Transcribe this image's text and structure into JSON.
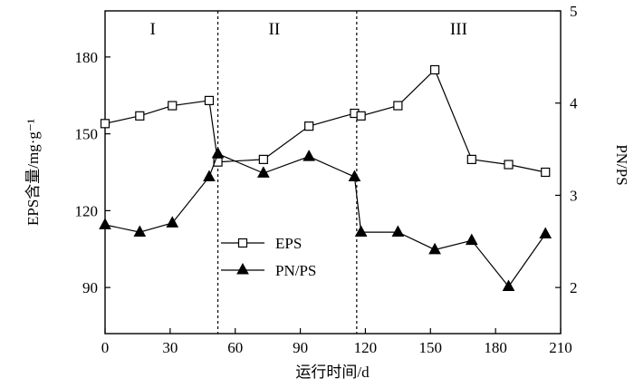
{
  "chart_data": {
    "type": "line",
    "title": "",
    "xlabel": "运行时间/d",
    "ylabel_left": "EPS含量/mg·g⁻¹",
    "ylabel_right": "PN/PS",
    "xlim": [
      0,
      210
    ],
    "ylim_left": [
      72,
      198
    ],
    "ylim_right": [
      1.5,
      5
    ],
    "x_ticks": [
      "0",
      "30",
      "60",
      "90",
      "120",
      "150",
      "180",
      "210"
    ],
    "y_left_ticks": [
      "90",
      "120",
      "150",
      "180"
    ],
    "y_right_ticks": [
      "2",
      "3",
      "4",
      "5"
    ],
    "phase_boundaries": [
      52,
      116
    ],
    "phase_labels": [
      {
        "text": "I",
        "x": 22
      },
      {
        "text": "II",
        "x": 78
      },
      {
        "text": "III",
        "x": 163
      }
    ],
    "legend": {
      "position": "center-left",
      "entries": [
        "EPS",
        "PN/PS"
      ]
    },
    "series": [
      {
        "name": "EPS",
        "axis": "left",
        "marker": "open-square",
        "x": [
          0,
          16,
          31,
          48,
          52,
          73,
          94,
          115,
          118,
          135,
          152,
          169,
          186,
          203
        ],
        "y": [
          154,
          157,
          161,
          163,
          139,
          140,
          153,
          158,
          157,
          161,
          175,
          140,
          138,
          135
        ]
      },
      {
        "name": "PN/PS",
        "axis": "right",
        "marker": "filled-triangle",
        "x": [
          0,
          16,
          31,
          48,
          52,
          73,
          94,
          115,
          118,
          135,
          152,
          169,
          186,
          203
        ],
        "y": [
          2.68,
          2.6,
          2.7,
          3.2,
          3.45,
          3.24,
          3.42,
          3.2,
          2.6,
          2.6,
          2.41,
          2.51,
          2.01,
          2.58
        ]
      }
    ]
  }
}
